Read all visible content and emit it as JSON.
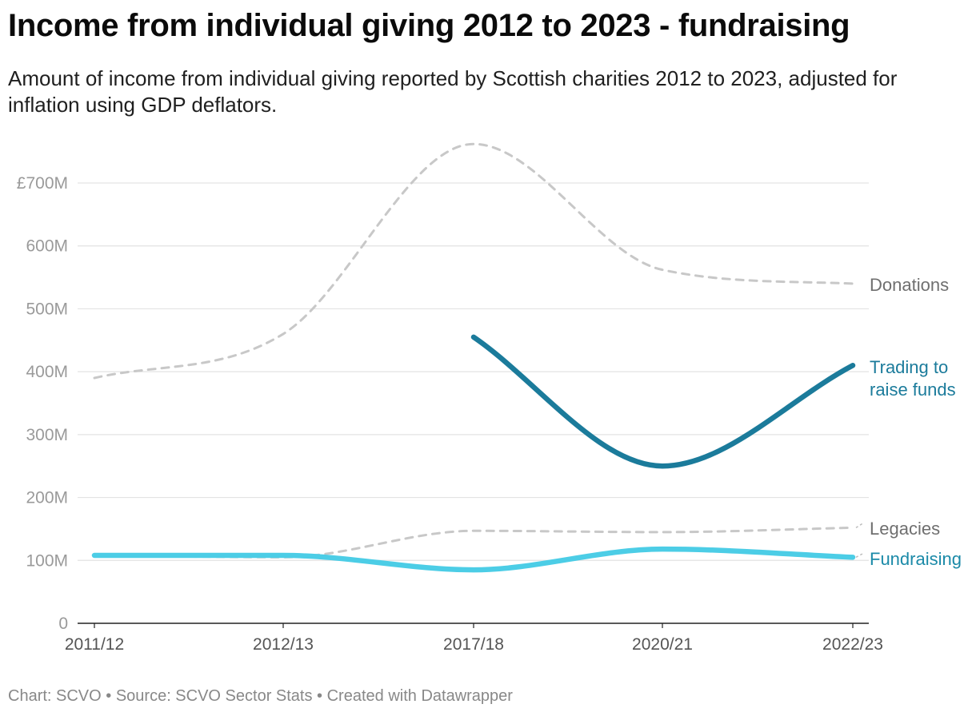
{
  "title": "Income from individual giving 2012 to 2023 - fundraising",
  "subtitle": "Amount of income from individual giving reported by Scottish charities 2012 to 2023, adjusted for inflation using GDP deflators.",
  "footer": {
    "chart_by": "Chart: SCVO",
    "source": "Source: SCVO Sector Stats",
    "created": "Created with Datawrapper",
    "separator": " • "
  },
  "chart_data": {
    "type": "line",
    "title": "Income from individual giving 2012 to 2023 - fundraising",
    "xlabel": "",
    "ylabel": "",
    "categories": [
      "2011/12",
      "2012/13",
      "2017/18",
      "2020/21",
      "2022/23"
    ],
    "y_ticks": [
      0,
      100,
      200,
      300,
      400,
      500,
      600,
      700
    ],
    "y_tick_labels": [
      "0",
      "100M",
      "200M",
      "300M",
      "400M",
      "500M",
      "600M",
      "£700M"
    ],
    "ylim": [
      0,
      700
    ],
    "unit": "£ millions",
    "grid": true,
    "series": [
      {
        "name": "Donations",
        "label": "Donations",
        "values": [
          390,
          460,
          762,
          562,
          540
        ],
        "color": "#c8c8c8",
        "label_color": "#6f6f6f",
        "style": "dashed"
      },
      {
        "name": "Trading to raise funds",
        "label_lines": [
          "Trading to",
          "raise funds"
        ],
        "values": [
          null,
          null,
          455,
          250,
          410
        ],
        "color": "#1b7b9b",
        "label_color": "#1b7b9b",
        "style": "solid"
      },
      {
        "name": "Legacies",
        "label": "Legacies",
        "values": [
          108,
          105,
          147,
          145,
          152
        ],
        "color": "#c8c8c8",
        "label_color": "#6f6f6f",
        "style": "dashed"
      },
      {
        "name": "Fundraising",
        "label": "Fundraising",
        "values": [
          108,
          108,
          85,
          118,
          105
        ],
        "color": "#4ccde6",
        "label_color": "#1b8aa8",
        "style": "solid"
      }
    ]
  }
}
